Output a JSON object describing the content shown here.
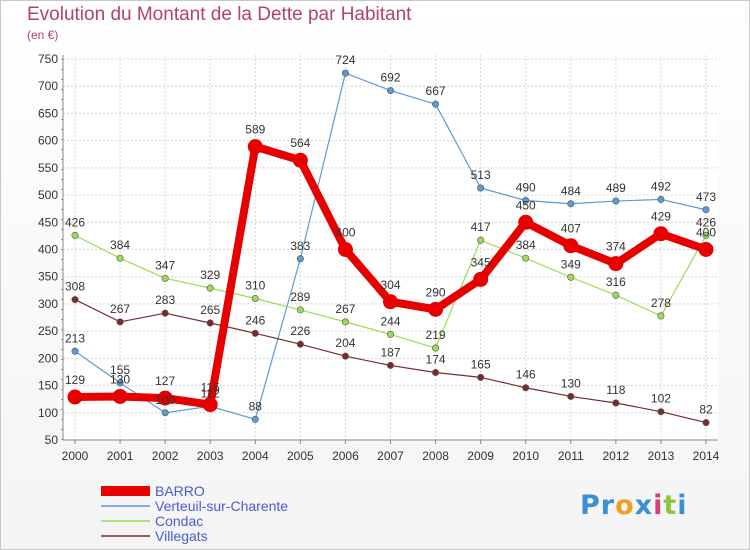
{
  "chart_data": {
    "type": "line",
    "title": "Evolution du Montant de la Dette par Habitant",
    "subtitle": "(en €)",
    "xlabel": "",
    "ylabel": "",
    "categories": [
      "2000",
      "2001",
      "2002",
      "2003",
      "2004",
      "2005",
      "2006",
      "2007",
      "2008",
      "2009",
      "2010",
      "2011",
      "2012",
      "2013",
      "2014"
    ],
    "ylim": [
      50,
      750
    ],
    "yticks": [
      50,
      100,
      150,
      200,
      250,
      300,
      350,
      400,
      450,
      500,
      550,
      600,
      650,
      700,
      750
    ],
    "grid": true,
    "legend_position": "bottom-left",
    "series": [
      {
        "name": "BARRO",
        "color": "#e60000",
        "values": [
          129,
          130,
          127,
          115,
          589,
          564,
          400,
          304,
          290,
          345,
          450,
          407,
          374,
          429,
          400
        ],
        "labels": [
          "129",
          "130",
          "127",
          "115",
          "589",
          "564",
          "400",
          "304",
          "290",
          "345",
          "450",
          "407",
          "374",
          "429",
          "400"
        ]
      },
      {
        "name": "Verteuil-sur-Charente",
        "color": "#5a9bd5",
        "values": [
          213,
          155,
          100,
          112,
          88,
          383,
          724,
          692,
          667,
          513,
          490,
          484,
          489,
          492,
          473
        ],
        "labels": [
          "213",
          "155",
          "100",
          "112",
          "88",
          "383",
          "724",
          "692",
          "667",
          "513",
          "490",
          "484",
          "489",
          "492",
          "473"
        ]
      },
      {
        "name": "Condac",
        "color": "#99dd55",
        "values": [
          426,
          384,
          347,
          329,
          310,
          289,
          267,
          244,
          219,
          417,
          384,
          349,
          316,
          278,
          426
        ],
        "labels": [
          "426",
          "384",
          "347",
          "329",
          "310",
          "289",
          "267",
          "244",
          "219",
          "417",
          "384",
          "349",
          "316",
          "278",
          "426"
        ]
      },
      {
        "name": "Villegats",
        "color": "#7a2a2a",
        "values": [
          308,
          267,
          283,
          265,
          246,
          226,
          204,
          187,
          174,
          165,
          146,
          130,
          118,
          102,
          82
        ],
        "labels": [
          "308",
          "267",
          "283",
          "265",
          "246",
          "226",
          "204",
          "187",
          "174",
          "165",
          "146",
          "130",
          "118",
          "102",
          "82"
        ]
      }
    ]
  },
  "brand": {
    "letters": [
      "P",
      "r",
      "o",
      "x",
      "i",
      "t",
      "i"
    ],
    "colors": [
      "#3b8fd6",
      "#3b8fd6",
      "#f0a020",
      "#3b8fd6",
      "#d83a7a",
      "#8cc63e",
      "#3b8fd6"
    ]
  }
}
